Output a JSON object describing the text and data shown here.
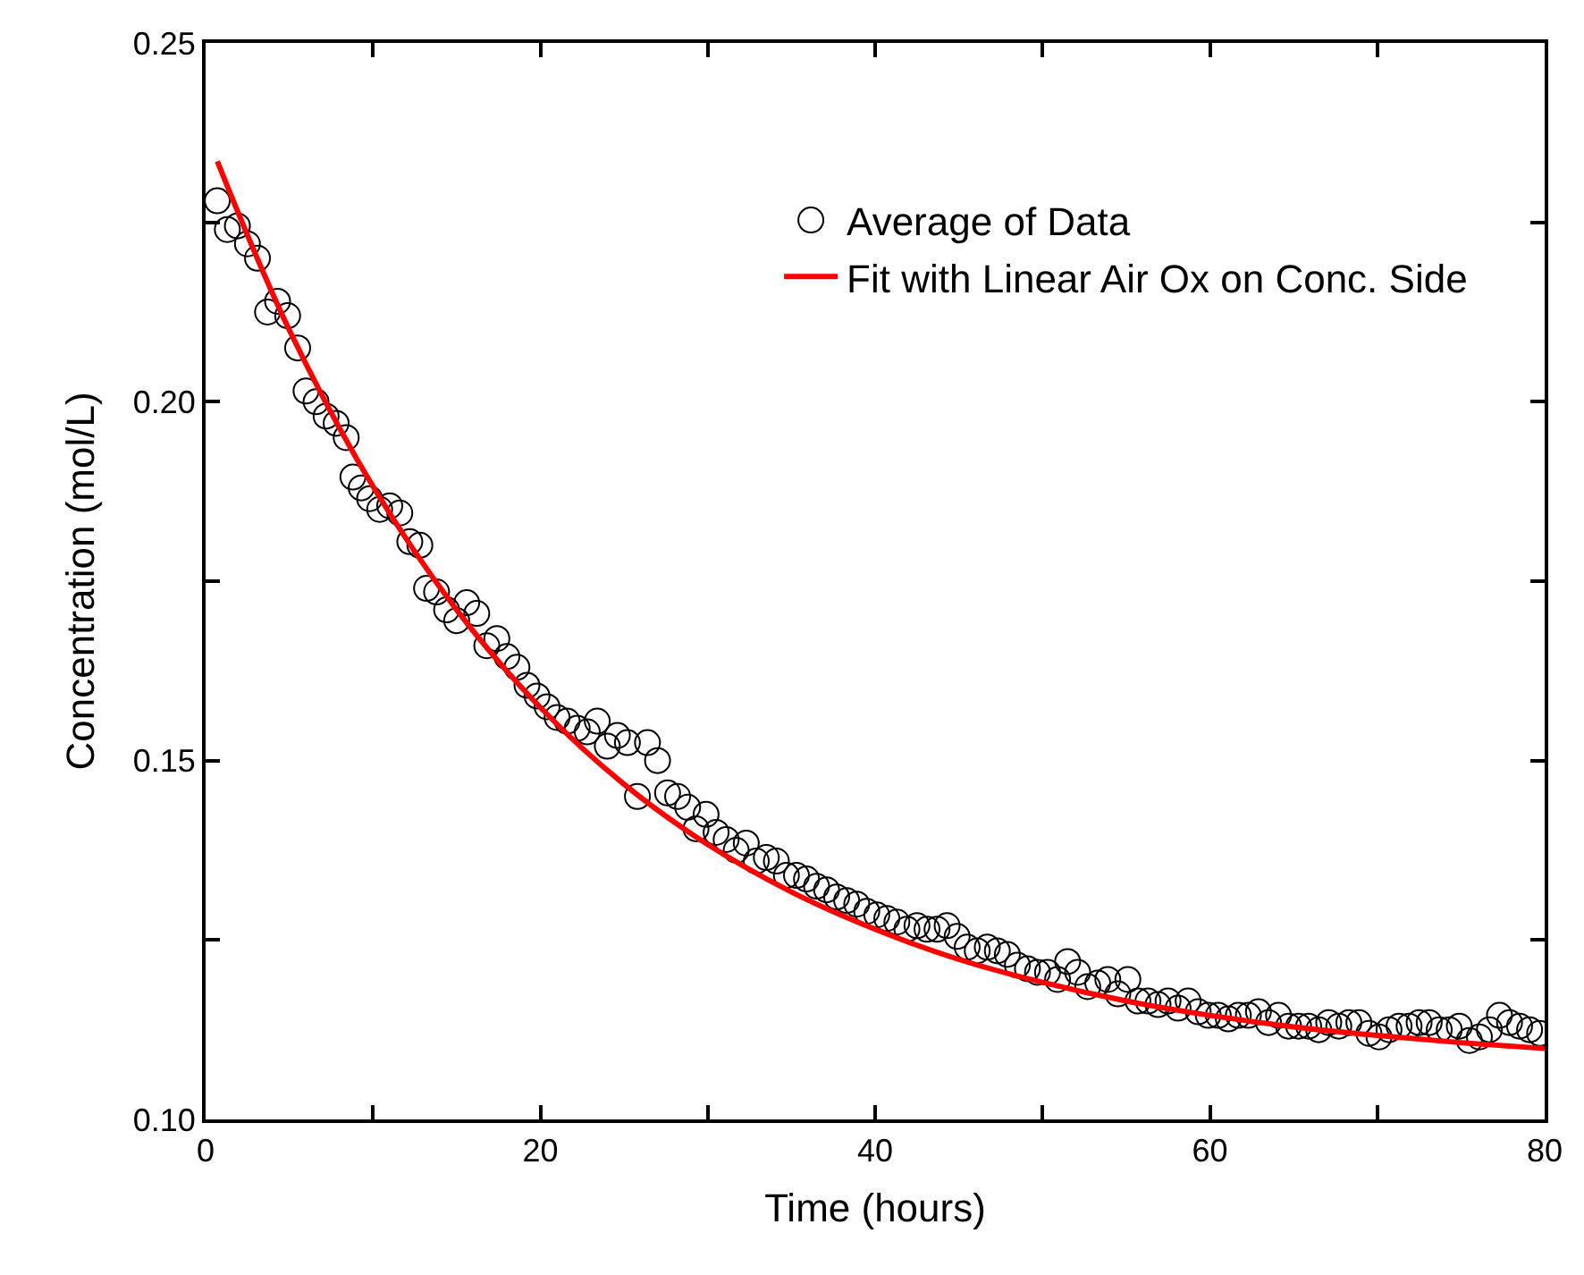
{
  "chart_data": {
    "type": "scatter",
    "xlabel": "Time (hours)",
    "ylabel": "Concentration (mol/L)",
    "xlim": [
      0,
      80
    ],
    "xticks": [
      0,
      {
        "value": 10,
        "label": null
      },
      20,
      {
        "value": 30,
        "label": null
      },
      40,
      {
        "value": 50,
        "label": null
      },
      60,
      {
        "value": 70,
        "label": null
      },
      80
    ],
    "ylim": [
      0.1,
      0.25
    ],
    "yticks": [
      {
        "value": 0.1,
        "label": "0.10"
      },
      {
        "value": 0.125,
        "label": null
      },
      {
        "value": 0.15,
        "label": "0.15"
      },
      {
        "value": 0.175,
        "label": null
      },
      {
        "value": 0.2,
        "label": "0.20"
      },
      {
        "value": 0.225,
        "label": null
      },
      {
        "value": 0.25,
        "label": "0.25"
      }
    ],
    "legend": "top right",
    "series": [
      {
        "name": "Average of Data",
        "marker": "circle",
        "color": "#000000",
        "x": [
          0.7,
          1.3,
          1.9,
          2.5,
          3.1,
          3.7,
          4.3,
          4.9,
          5.5,
          6.0,
          6.6,
          7.2,
          7.8,
          8.4,
          8.8,
          9.3,
          9.8,
          10.4,
          11.0,
          11.6,
          12.2,
          12.8,
          13.2,
          13.8,
          14.4,
          15.0,
          15.6,
          16.2,
          16.8,
          17.4,
          18.0,
          18.6,
          19.2,
          19.8,
          20.4,
          21.0,
          21.6,
          22.2,
          22.8,
          23.4,
          24.0,
          24.6,
          25.2,
          25.8,
          26.4,
          27.0,
          27.6,
          28.2,
          28.8,
          29.3,
          29.9,
          30.5,
          31.1,
          31.7,
          32.3,
          32.9,
          33.5,
          34.1,
          34.7,
          35.3,
          35.9,
          36.5,
          37.1,
          37.7,
          38.3,
          38.9,
          39.5,
          40.1,
          40.7,
          41.3,
          41.9,
          42.5,
          43.1,
          43.7,
          44.3,
          44.9,
          45.5,
          46.1,
          46.7,
          47.3,
          47.9,
          48.5,
          49.1,
          49.7,
          50.3,
          50.9,
          51.5,
          52.1,
          52.7,
          53.3,
          53.9,
          54.5,
          55.1,
          55.7,
          56.3,
          56.9,
          57.5,
          58.1,
          58.7,
          59.3,
          59.9,
          60.5,
          61.1,
          61.7,
          62.3,
          62.9,
          63.5,
          64.1,
          64.7,
          65.3,
          65.9,
          66.5,
          67.1,
          67.7,
          68.3,
          68.9,
          69.5,
          70.1,
          70.7,
          71.3,
          71.9,
          72.5,
          73.1,
          73.7,
          74.3,
          74.9,
          75.5,
          76.1,
          76.7,
          77.3,
          77.9,
          78.5,
          79.1,
          79.7
        ],
        "values": [
          0.228,
          0.224,
          0.2245,
          0.222,
          0.22,
          0.2125,
          0.214,
          0.212,
          0.2075,
          0.2015,
          0.2,
          0.198,
          0.197,
          0.195,
          0.1895,
          0.188,
          0.1865,
          0.185,
          0.1855,
          0.1845,
          0.1805,
          0.18,
          0.174,
          0.1735,
          0.171,
          0.1695,
          0.172,
          0.1705,
          0.166,
          0.167,
          0.1645,
          0.163,
          0.1605,
          0.159,
          0.1575,
          0.156,
          0.1555,
          0.1545,
          0.154,
          0.1555,
          0.152,
          0.1535,
          0.1525,
          0.145,
          0.1525,
          0.15,
          0.1455,
          0.145,
          0.1435,
          0.1405,
          0.1425,
          0.14,
          0.139,
          0.1375,
          0.1385,
          0.136,
          0.1365,
          0.136,
          0.134,
          0.134,
          0.1335,
          0.1325,
          0.132,
          0.131,
          0.1305,
          0.13,
          0.129,
          0.1285,
          0.128,
          0.1275,
          0.1265,
          0.127,
          0.1265,
          0.1265,
          0.127,
          0.1255,
          0.124,
          0.1235,
          0.124,
          0.1235,
          0.123,
          0.1215,
          0.121,
          0.1205,
          0.1205,
          0.1195,
          0.122,
          0.1205,
          0.1185,
          0.119,
          0.1195,
          0.1175,
          0.1195,
          0.1165,
          0.1165,
          0.116,
          0.1165,
          0.1155,
          0.1165,
          0.115,
          0.1145,
          0.1145,
          0.114,
          0.1145,
          0.1145,
          0.115,
          0.1135,
          0.1145,
          0.113,
          0.113,
          0.113,
          0.1125,
          0.1135,
          0.113,
          0.1135,
          0.1135,
          0.112,
          0.1115,
          0.1125,
          0.113,
          0.113,
          0.1135,
          0.1135,
          0.1125,
          0.1125,
          0.113,
          0.111,
          0.1115,
          0.1125,
          0.1145,
          0.1135,
          0.113,
          0.1125,
          0.112
        ]
      },
      {
        "name": "Fit with Linear Air Ox on Conc. Side",
        "type": "line",
        "marker": "none",
        "line_style": "solid",
        "color": "#ff0000",
        "x": [
          0.7,
          5,
          10,
          15,
          20,
          25,
          30,
          35,
          40,
          45,
          50,
          55,
          60,
          65,
          70,
          75,
          80
        ],
        "values": [
          0.2335,
          0.21,
          0.1882,
          0.171,
          0.1574,
          0.1467,
          0.1383,
          0.1317,
          0.1265,
          0.1223,
          0.1191,
          0.1165,
          0.1145,
          0.1129,
          0.1117,
          0.1107,
          0.1099
        ]
      }
    ]
  }
}
